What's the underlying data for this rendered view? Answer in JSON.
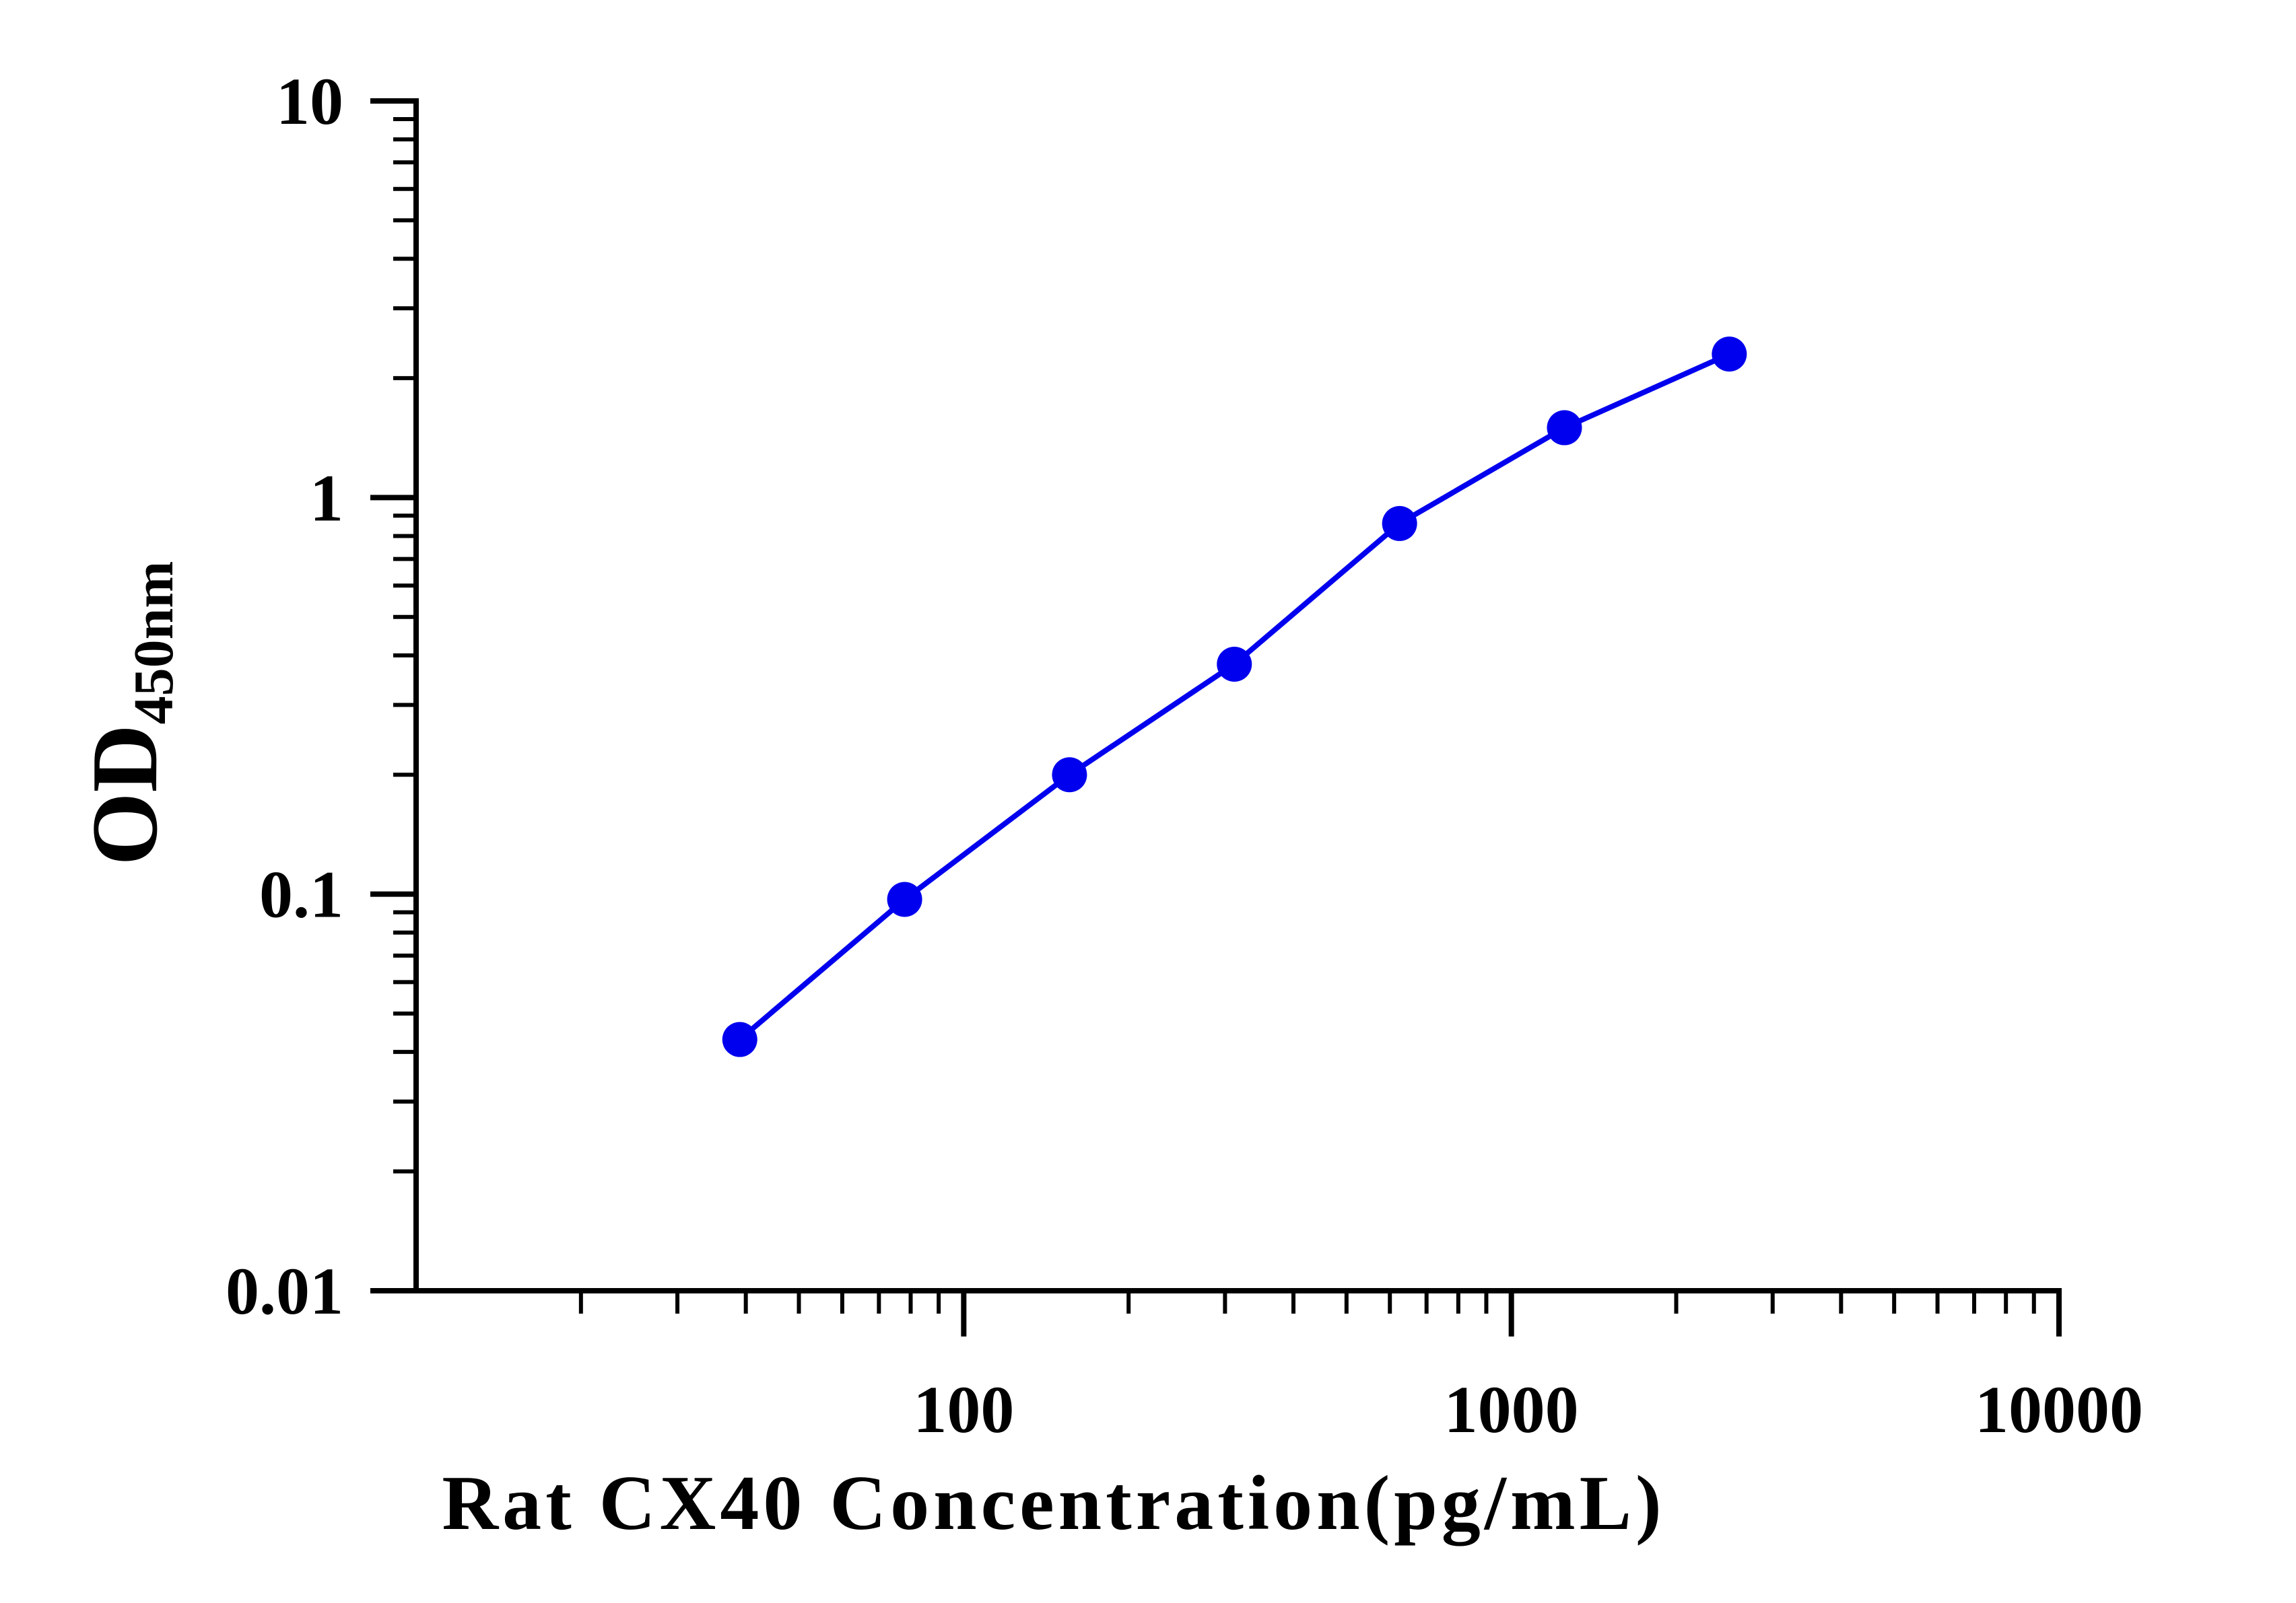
{
  "chart_data": {
    "type": "line",
    "xlabel": "Rat CX40 Concentration(pg/mL)",
    "ylabel": {
      "main": "OD",
      "subscript": "450nm"
    },
    "xscale": "log",
    "yscale": "log",
    "xlim": [
      10,
      10000
    ],
    "ylim": [
      0.01,
      10
    ],
    "x_ticks": [
      "100",
      "1000",
      "10000"
    ],
    "y_ticks": [
      "0.01",
      "0.1",
      "1",
      "10"
    ],
    "grid": false,
    "legend": "none",
    "series": [
      {
        "color": "#0000ee",
        "marker": "circle",
        "x": [
          39,
          78,
          156,
          312,
          625,
          1250,
          2500
        ],
        "y": [
          0.043,
          0.097,
          0.2,
          0.38,
          0.86,
          1.5,
          2.3
        ]
      }
    ]
  }
}
